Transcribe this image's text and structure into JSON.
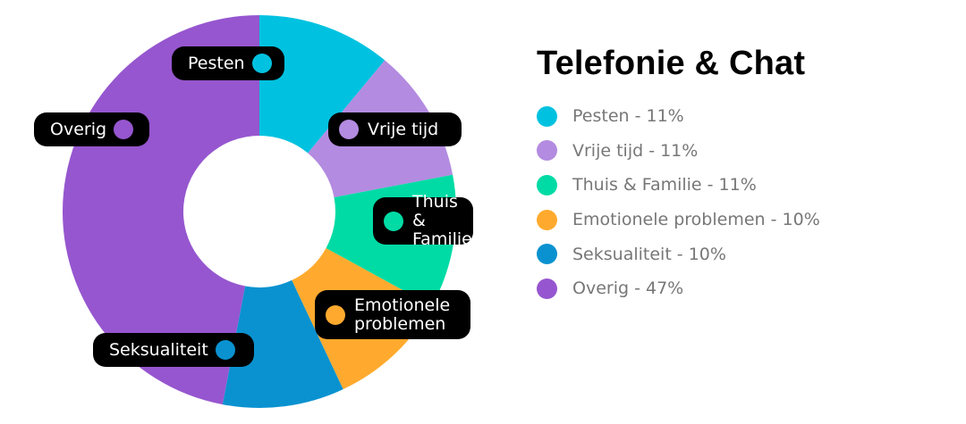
{
  "chart_data": {
    "type": "pie",
    "variant": "donut",
    "title": "Telefonie & Chat",
    "categories": [
      "Pesten",
      "Vrije tijd",
      "Thuis & Familie",
      "Emotionele problemen",
      "Seksualiteit",
      "Overig"
    ],
    "values": [
      11,
      11,
      11,
      10,
      10,
      47
    ],
    "unit": "%",
    "colors": [
      "#00C2E0",
      "#B38BE0",
      "#00DBA5",
      "#FFAA2E",
      "#0A92D0",
      "#9656CF"
    ],
    "start_angle": "12 o'clock",
    "direction": "clockwise",
    "legend_position": "right"
  },
  "title": "Telefonie & Chat",
  "legend": [
    {
      "label": "Pesten - 11%",
      "color": "#00C2E0"
    },
    {
      "label": "Vrije tijd - 11%",
      "color": "#B38BE0"
    },
    {
      "label": "Thuis & Familie - 11%",
      "color": "#00DBA5"
    },
    {
      "label": "Emotionele problemen - 10%",
      "color": "#FFAA2E"
    },
    {
      "label": "Seksualiteit - 10%",
      "color": "#0A92D0"
    },
    {
      "label": "Overig - 47%",
      "color": "#9656CF"
    }
  ],
  "labels": {
    "pesten": "Pesten",
    "vrije_tijd": "Vrije tijd",
    "thuis": "Thuis &\nFamilie",
    "emotionele": "Emotionele\nproblemen",
    "seksualiteit": "Seksualiteit",
    "overig": "Overig"
  }
}
